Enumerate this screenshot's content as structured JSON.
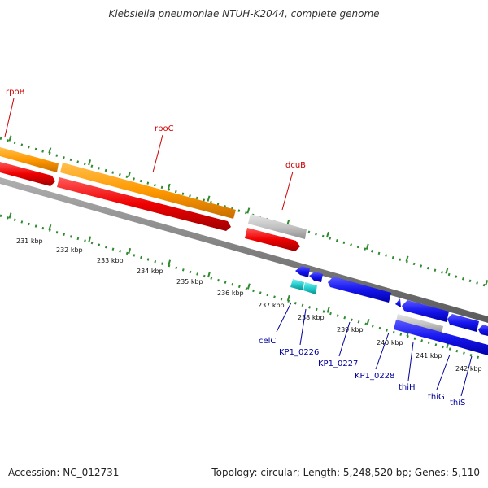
{
  "title": "Klebsiella pneumoniae NTUH-K2044, complete genome",
  "footer": {
    "accession": "Accession: NC_012731",
    "summary": "Topology: circular; Length: 5,248,520 bp; Genes: 5,110"
  },
  "colors": {
    "background": "#ffffff",
    "backbone": "#808080",
    "tick": "#2e8b2e",
    "label_red": "#cc0000",
    "label_blue": "#000099",
    "kbp_label": "#111111"
  },
  "kbp_labels": [
    "231 kbp",
    "232 kbp",
    "233 kbp",
    "234 kbp",
    "235 kbp",
    "236 kbp",
    "237 kbp",
    "238 kbp",
    "239 kbp",
    "240 kbp",
    "241 kbp",
    "242 kbp"
  ],
  "feature_labels": {
    "rpoB": "rpoB",
    "rpoC": "rpoC",
    "dcuB": "dcuB",
    "celC": "celC",
    "KP1_0226": "KP1_0226",
    "KP1_0227": "KP1_0227",
    "KP1_0228": "KP1_0228",
    "thiH": "thiH",
    "thiG": "thiG",
    "thiS": "thiS"
  }
}
